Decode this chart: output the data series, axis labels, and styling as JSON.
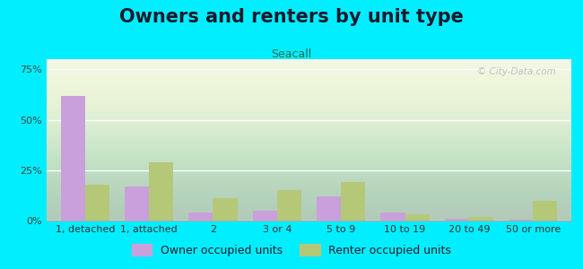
{
  "title": "Owners and renters by unit type",
  "subtitle": "Seacall",
  "categories": [
    "1, detached",
    "1, attached",
    "2",
    "3 or 4",
    "5 to 9",
    "10 to 19",
    "20 to 49",
    "50 or more"
  ],
  "owner_values": [
    62,
    17,
    4,
    5,
    12,
    4,
    1,
    0.5
  ],
  "renter_values": [
    18,
    29,
    11,
    15,
    19,
    3,
    2,
    10
  ],
  "owner_color": "#c9a0dc",
  "renter_color": "#b5c878",
  "background_outer": "#00eeff",
  "yticks": [
    0,
    25,
    50,
    75
  ],
  "ylim": [
    0,
    80
  ],
  "bar_width": 0.38,
  "title_fontsize": 15,
  "subtitle_fontsize": 9,
  "legend_fontsize": 9,
  "tick_fontsize": 8,
  "watermark_text": "© City-Data.com"
}
